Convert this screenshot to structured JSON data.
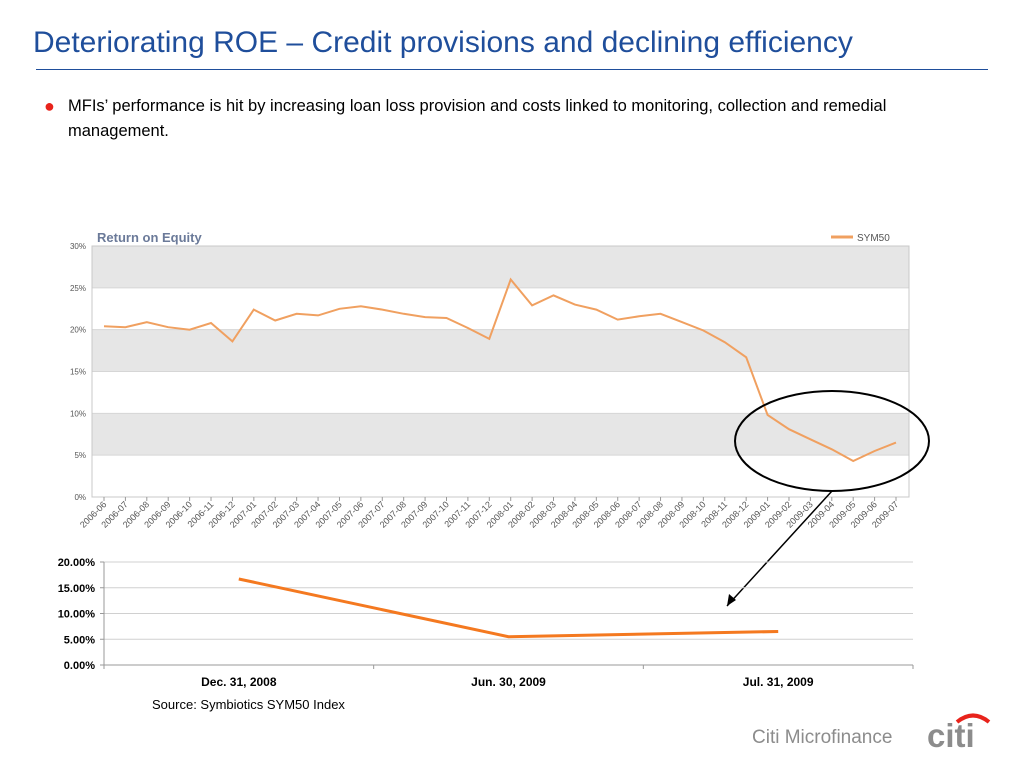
{
  "slide": {
    "title": "Deteriorating ROE – Credit provisions and declining efficiency",
    "bullet": "MFIs’ performance is hit by increasing loan loss provision and costs linked to monitoring, collection and remedial management.",
    "source": "Source: Symbiotics SYM50 Index",
    "footer_brand": "Citi Microfinance",
    "logo_text": "citi"
  },
  "colors": {
    "title": "#1f4e9b",
    "bullet": "#e8231b",
    "top_line": "#f0a060",
    "bottom_line": "#f47920",
    "chart_title": "#6b7a99",
    "band": "#e6e6e6"
  },
  "chart_data": [
    {
      "type": "line",
      "title": "Return on Equity",
      "legend": "top-right",
      "grid": true,
      "ylim": [
        0,
        30
      ],
      "yticks": [
        "0%",
        "5%",
        "10%",
        "15%",
        "20%",
        "25%",
        "30%"
      ],
      "categories": [
        "2006-06",
        "2006-07",
        "2006-08",
        "2006-09",
        "2006-10",
        "2006-11",
        "2006-12",
        "2007-01",
        "2007-02",
        "2007-03",
        "2007-04",
        "2007-05",
        "2007-06",
        "2007-07",
        "2007-08",
        "2007-09",
        "2007-10",
        "2007-11",
        "2007-12",
        "2008-01",
        "2008-02",
        "2008-03",
        "2008-04",
        "2008-05",
        "2008-06",
        "2008-07",
        "2008-08",
        "2008-09",
        "2008-10",
        "2008-11",
        "2008-12",
        "2009-01",
        "2009-02",
        "2009-03",
        "2009-04",
        "2009-05",
        "2009-06",
        "2009-07"
      ],
      "series": [
        {
          "name": "SYM50",
          "values": [
            20.4,
            20.3,
            20.9,
            20.3,
            20.0,
            20.8,
            18.6,
            22.4,
            21.1,
            21.9,
            21.7,
            22.5,
            22.8,
            22.4,
            21.9,
            21.5,
            21.4,
            20.2,
            18.9,
            26.0,
            22.9,
            24.1,
            23.0,
            22.4,
            21.2,
            21.6,
            21.9,
            20.9,
            19.9,
            18.5,
            16.7,
            9.8,
            8.1,
            6.9,
            5.7,
            4.3,
            5.5,
            6.5
          ]
        }
      ]
    },
    {
      "type": "line",
      "legend": "none",
      "grid": true,
      "ylim": [
        0,
        20
      ],
      "yticks": [
        "0.00%",
        "5.00%",
        "10.00%",
        "15.00%",
        "20.00%"
      ],
      "categories": [
        "Dec. 31, 2008",
        "Jun. 30, 2009",
        "Jul. 31, 2009"
      ],
      "series": [
        {
          "values": [
            16.7,
            5.5,
            6.5
          ]
        }
      ]
    }
  ]
}
